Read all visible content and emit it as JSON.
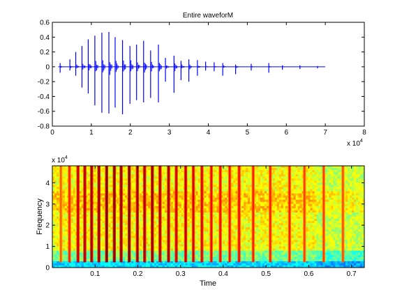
{
  "chart_data": [
    {
      "type": "line",
      "title": "Entire waveforM",
      "xlabel": "",
      "ylabel": "",
      "xlim": [
        0,
        80000
      ],
      "ylim": [
        -0.8,
        0.6
      ],
      "x_tick_labels": [
        "0",
        "1",
        "2",
        "3",
        "4",
        "5",
        "6",
        "7",
        "8"
      ],
      "x_multiplier": {
        "base": "x 10",
        "exponent": "4"
      },
      "y_tick_labels": [
        "0.6",
        "0.4",
        "0.2",
        "0",
        "-0.2",
        "-0.4",
        "-0.6",
        "-0.8"
      ],
      "grid": false,
      "line_color": "#0000ff",
      "signal_end_x": 70000,
      "series": [
        {
          "spikes": [
            {
              "x": 2000,
              "max": 0.05,
              "min": -0.08
            },
            {
              "x": 4500,
              "max": 0.1,
              "min": -0.05
            },
            {
              "x": 6000,
              "max": 0.2,
              "min": -0.12
            },
            {
              "x": 7600,
              "max": 0.28,
              "min": -0.28
            },
            {
              "x": 9200,
              "max": 0.37,
              "min": -0.36
            },
            {
              "x": 10900,
              "max": 0.42,
              "min": -0.52
            },
            {
              "x": 12700,
              "max": 0.46,
              "min": -0.62
            },
            {
              "x": 14500,
              "max": 0.47,
              "min": -0.63
            },
            {
              "x": 16100,
              "max": 0.4,
              "min": -0.55
            },
            {
              "x": 18000,
              "max": 0.36,
              "min": -0.64
            },
            {
              "x": 19900,
              "max": 0.28,
              "min": -0.5
            },
            {
              "x": 21600,
              "max": 0.3,
              "min": -0.45
            },
            {
              "x": 23400,
              "max": 0.35,
              "min": -0.48
            },
            {
              "x": 25200,
              "max": 0.22,
              "min": -0.42
            },
            {
              "x": 27200,
              "max": 0.3,
              "min": -0.48
            },
            {
              "x": 29000,
              "max": 0.12,
              "min": -0.2
            },
            {
              "x": 31200,
              "max": 0.15,
              "min": -0.35
            },
            {
              "x": 33000,
              "max": 0.08,
              "min": -0.18
            },
            {
              "x": 35000,
              "max": 0.1,
              "min": -0.2
            },
            {
              "x": 37200,
              "max": 0.09,
              "min": -0.12
            },
            {
              "x": 39300,
              "max": 0.07,
              "min": -0.05
            },
            {
              "x": 41500,
              "max": 0.06,
              "min": -0.06
            },
            {
              "x": 43700,
              "max": 0.05,
              "min": -0.12
            },
            {
              "x": 47000,
              "max": 0.03,
              "min": -0.1
            },
            {
              "x": 51000,
              "max": 0.04,
              "min": -0.05
            },
            {
              "x": 55500,
              "max": 0.05,
              "min": -0.08
            },
            {
              "x": 59000,
              "max": 0.02,
              "min": -0.04
            },
            {
              "x": 63500,
              "max": 0.02,
              "min": -0.03
            },
            {
              "x": 68000,
              "max": 0.01,
              "min": -0.02
            }
          ]
        }
      ]
    },
    {
      "type": "heatmap",
      "title": "",
      "xlabel": "Time",
      "ylabel": "Frequency",
      "xlim": [
        0,
        0.73
      ],
      "ylim": [
        0,
        48000
      ],
      "x_tick_labels": [
        "0.1",
        "0.2",
        "0.3",
        "0.4",
        "0.5",
        "0.6",
        "0.7"
      ],
      "y_tick_labels": [
        "0",
        "1",
        "2",
        "3",
        "4"
      ],
      "y_multiplier": {
        "base": "x 10",
        "exponent": "4"
      },
      "colormap": "jet",
      "band_times": [
        0.02,
        0.04,
        0.06,
        0.076,
        0.092,
        0.109,
        0.127,
        0.145,
        0.161,
        0.18,
        0.199,
        0.216,
        0.234,
        0.252,
        0.272,
        0.29,
        0.312,
        0.33,
        0.35,
        0.372,
        0.393,
        0.415,
        0.437,
        0.47,
        0.51,
        0.555,
        0.59,
        0.635,
        0.68
      ],
      "band_intensity": [
        0.3,
        0.5,
        0.8,
        0.85,
        0.9,
        0.95,
        1.0,
        1.0,
        0.95,
        1.0,
        0.9,
        0.85,
        0.95,
        0.85,
        0.9,
        0.75,
        0.8,
        0.7,
        0.7,
        0.6,
        0.6,
        0.55,
        0.6,
        0.5,
        0.5,
        0.5,
        0.4,
        0.4,
        0.35
      ]
    }
  ]
}
